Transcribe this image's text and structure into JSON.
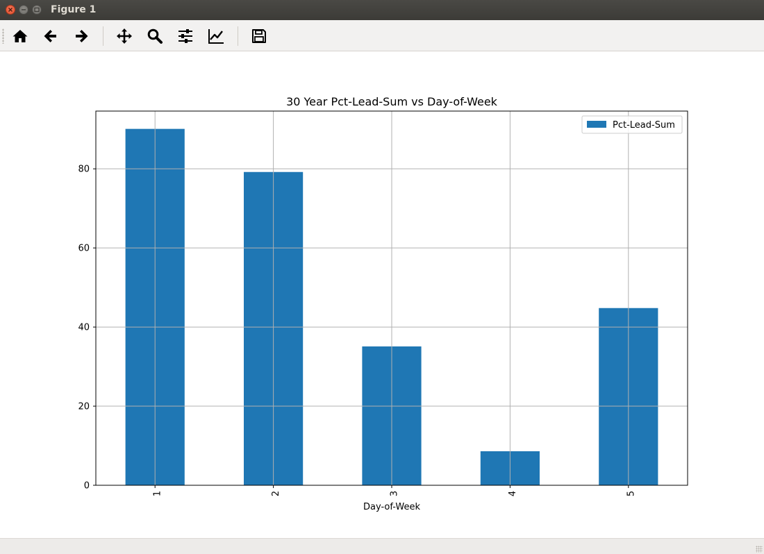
{
  "window": {
    "title": "Figure 1"
  },
  "toolbar": {
    "tools": [
      {
        "name": "home",
        "icon": "home-icon"
      },
      {
        "name": "back",
        "icon": "arrow-left-icon"
      },
      {
        "name": "forward",
        "icon": "arrow-right-icon"
      },
      {
        "name": "pan",
        "icon": "move-icon"
      },
      {
        "name": "zoom",
        "icon": "search-icon"
      },
      {
        "name": "configure-subplots",
        "icon": "sliders-icon"
      },
      {
        "name": "edit-axis",
        "icon": "line-chart-icon"
      },
      {
        "name": "save",
        "icon": "save-icon"
      }
    ]
  },
  "chart_data": {
    "type": "bar",
    "title": "30 Year Pct-Lead-Sum vs Day-of-Week",
    "xlabel": "Day-of-Week",
    "ylabel": "",
    "categories": [
      "1",
      "2",
      "3",
      "4",
      "5"
    ],
    "series": [
      {
        "name": "Pct-Lead-Sum",
        "values": [
          90.1,
          79.2,
          35.1,
          8.6,
          44.8
        ],
        "color": "#1f77b4"
      }
    ],
    "ylim": [
      0,
      94.6
    ],
    "yticks": [
      0,
      20,
      40,
      60,
      80
    ],
    "yticklabels": [
      "0",
      "20",
      "40",
      "60",
      "80"
    ],
    "grid": true,
    "legend": "top-right",
    "xtick_rotation": 90
  }
}
